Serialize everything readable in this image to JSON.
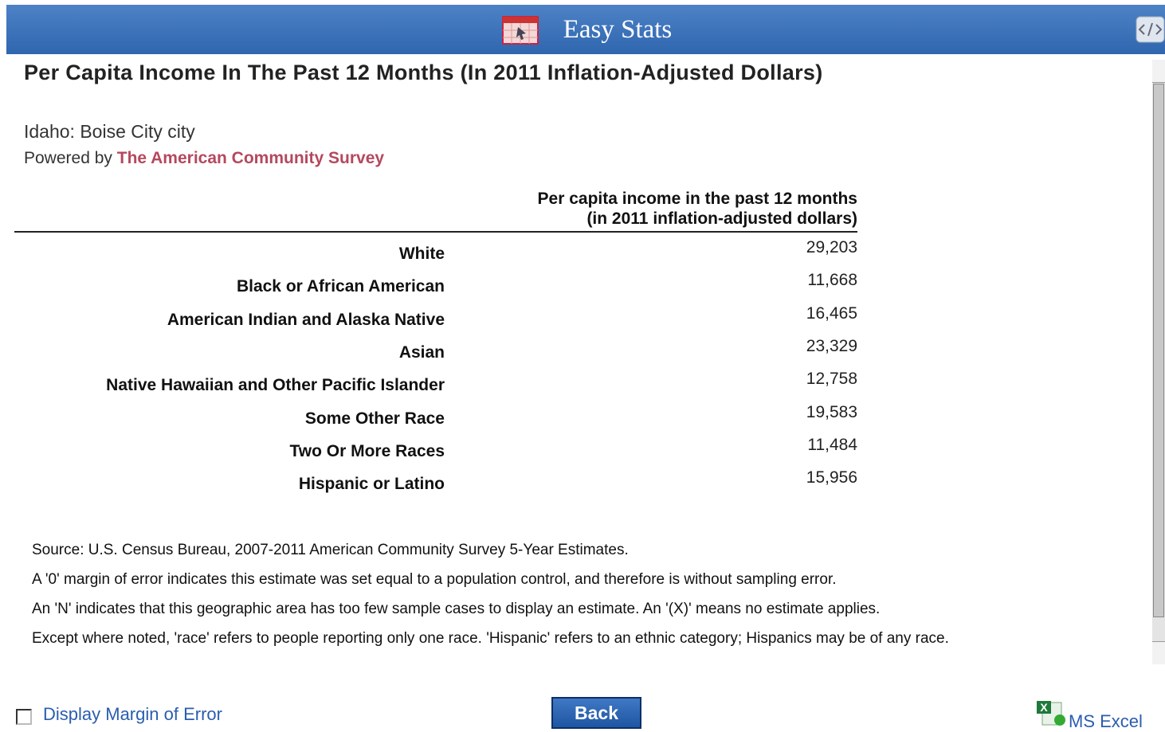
{
  "header": {
    "title": "Easy Stats"
  },
  "report": {
    "title": "Per Capita Income In The Past 12 Months (In 2011 Inflation-Adjusted Dollars)",
    "geography": "Idaho: Boise City city",
    "powered_by": "Powered by",
    "source_link": "The American Community Survey"
  },
  "table": {
    "header": [
      "Per capita income in the past 12 months",
      "(in 2011 inflation-adjusted dollars)"
    ],
    "rows": [
      [
        "White",
        "29,203"
      ],
      [
        "Black or African American",
        "11,668"
      ],
      [
        "American Indian and Alaska Native",
        "16,465"
      ],
      [
        "Asian",
        "23,329"
      ],
      [
        "Native Hawaiian and Other Pacific Islander",
        "12,758"
      ],
      [
        "Some Other Race",
        "19,583"
      ],
      [
        "Two Or More Races",
        "11,484"
      ],
      [
        "Hispanic or Latino",
        "15,956"
      ]
    ]
  },
  "notes": [
    "Source: U.S. Census Bureau, 2007-2011 American Community Survey 5-Year Estimates.",
    "A '0' margin of error indicates this estimate was set equal to a population control, and therefore is without sampling error.",
    "An 'N' indicates that this geographic area has too few sample cases to display an estimate. An '(X)' means no estimate applies.",
    "Except where noted, 'race' refers to people reporting only one race. 'Hispanic' refers to an ethnic category; Hispanics may be of any race."
  ],
  "footer": {
    "checkbox_label": "Display Margin of Error",
    "button": "Back",
    "export_link": "MS Excel"
  }
}
